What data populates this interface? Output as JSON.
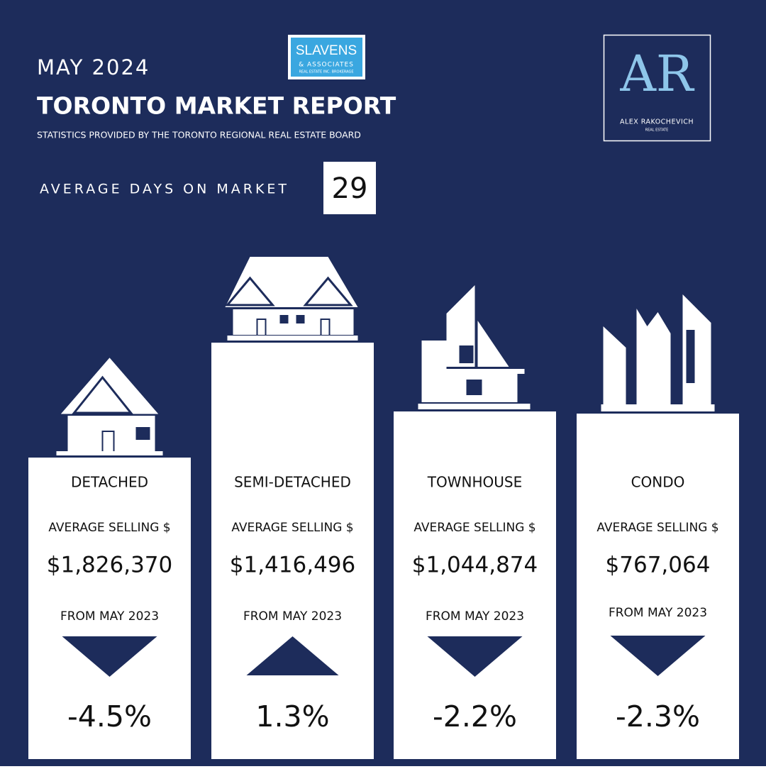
{
  "header": {
    "month": "MAY 2024",
    "title": "TORONTO MARKET REPORT",
    "source": "STATISTICS PROVIDED BY THE TORONTO REGIONAL REAL ESTATE BOARD"
  },
  "days_on_market": {
    "label": "AVERAGE DAYS ON MARKET",
    "value": "29"
  },
  "brokerage_logo": {
    "name": "SLAVENS",
    "line2": "& ASSOCIATES",
    "line3": "REAL ESTATE INC. BROKERAGE"
  },
  "agent_logo": {
    "monogram": "AR",
    "name": "ALEX RAKOCHEVICH",
    "tagline": "REAL ESTATE"
  },
  "cards": [
    {
      "type": "DETACHED",
      "label": "AVERAGE SELLING $",
      "price": "$1,826,370",
      "compare": "FROM MAY 2023",
      "direction": "down",
      "change": "-4.5%"
    },
    {
      "type": "SEMI-DETACHED",
      "label": "AVERAGE SELLING $",
      "price": "$1,416,496",
      "compare": "FROM MAY 2023",
      "direction": "up",
      "change": "1.3%"
    },
    {
      "type": "TOWNHOUSE",
      "label": "AVERAGE SELLING $",
      "price": "$1,044,874",
      "compare": "FROM MAY 2023",
      "direction": "down",
      "change": "-2.2%"
    },
    {
      "type": "CONDO",
      "label": "AVERAGE SELLING $",
      "price": "$767,064",
      "compare": "FROM MAY 2023",
      "direction": "down",
      "change": "-2.3%"
    }
  ]
}
